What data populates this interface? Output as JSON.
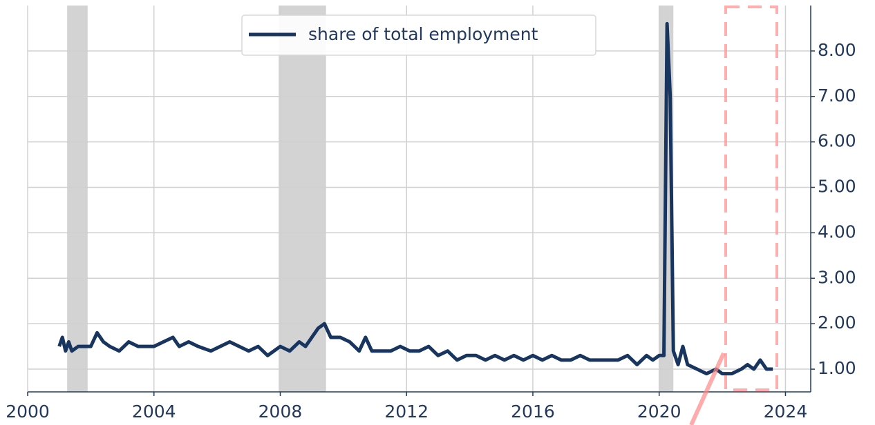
{
  "chart_data": {
    "type": "line",
    "xlim": [
      2000,
      2024.8
    ],
    "ylim": [
      0.5,
      9.0
    ],
    "xticks": [
      2000,
      2004,
      2008,
      2012,
      2016,
      2020,
      2024
    ],
    "yticks": [
      {
        "value": 1,
        "label": "1.00"
      },
      {
        "value": 2,
        "label": "2.00"
      },
      {
        "value": 3,
        "label": "3.00"
      },
      {
        "value": 4,
        "label": "4.00"
      },
      {
        "value": 5,
        "label": "5.00"
      },
      {
        "value": 6,
        "label": "6.00"
      },
      {
        "value": 7,
        "label": "7.00"
      },
      {
        "value": 8,
        "label": "8.00"
      }
    ],
    "grid": true,
    "legend": "upper center",
    "recessions": [
      [
        2001.25,
        2001.9
      ],
      [
        2007.95,
        2009.45
      ],
      [
        2020.0,
        2020.45
      ]
    ],
    "series": [
      {
        "name": "share of total employment",
        "color": "#17355e",
        "x": [
          2001.0,
          2001.1,
          2001.2,
          2001.3,
          2001.4,
          2001.6,
          2002.0,
          2002.2,
          2002.4,
          2002.6,
          2002.9,
          2003.2,
          2003.5,
          2004.0,
          2004.3,
          2004.6,
          2004.8,
          2005.1,
          2005.4,
          2005.8,
          2006.1,
          2006.4,
          2006.7,
          2007.0,
          2007.3,
          2007.6,
          2008.0,
          2008.3,
          2008.6,
          2008.8,
          2009.0,
          2009.2,
          2009.4,
          2009.6,
          2009.9,
          2010.2,
          2010.5,
          2010.7,
          2010.9,
          2011.2,
          2011.5,
          2011.8,
          2012.1,
          2012.4,
          2012.7,
          2013.0,
          2013.3,
          2013.6,
          2013.9,
          2014.2,
          2014.5,
          2014.8,
          2015.1,
          2015.4,
          2015.7,
          2016.0,
          2016.3,
          2016.6,
          2016.9,
          2017.2,
          2017.5,
          2017.8,
          2018.1,
          2018.4,
          2018.7,
          2019.0,
          2019.3,
          2019.6,
          2019.8,
          2020.0,
          2020.15,
          2020.25,
          2020.35,
          2020.45,
          2020.6,
          2020.75,
          2020.9,
          2021.2,
          2021.5,
          2021.8,
          2022.0,
          2022.3,
          2022.6,
          2022.8,
          2023.0,
          2023.2,
          2023.4,
          2023.6
        ],
        "values": [
          1.5,
          1.7,
          1.4,
          1.6,
          1.4,
          1.5,
          1.5,
          1.8,
          1.6,
          1.5,
          1.4,
          1.6,
          1.5,
          1.5,
          1.6,
          1.7,
          1.5,
          1.6,
          1.5,
          1.4,
          1.5,
          1.6,
          1.5,
          1.4,
          1.5,
          1.3,
          1.5,
          1.4,
          1.6,
          1.5,
          1.7,
          1.9,
          2.0,
          1.7,
          1.7,
          1.6,
          1.4,
          1.7,
          1.4,
          1.4,
          1.4,
          1.5,
          1.4,
          1.4,
          1.5,
          1.3,
          1.4,
          1.2,
          1.3,
          1.3,
          1.2,
          1.3,
          1.2,
          1.3,
          1.2,
          1.3,
          1.2,
          1.3,
          1.2,
          1.2,
          1.3,
          1.2,
          1.2,
          1.2,
          1.2,
          1.3,
          1.1,
          1.3,
          1.2,
          1.3,
          1.3,
          8.6,
          7.0,
          1.4,
          1.1,
          1.5,
          1.1,
          1.0,
          0.9,
          1.0,
          0.9,
          0.9,
          1.0,
          1.1,
          1.0,
          1.2,
          1.0,
          1.0
        ]
      }
    ]
  }
}
